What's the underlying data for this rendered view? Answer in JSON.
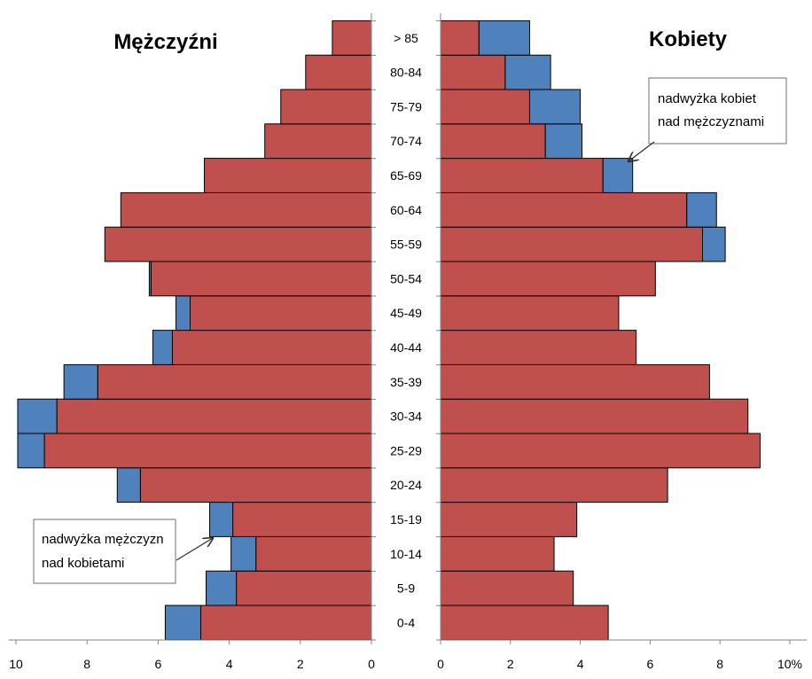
{
  "chart_data": {
    "type": "bar",
    "orientation": "horizontal",
    "unit": "%",
    "age_groups": [
      "0-4",
      "5-9",
      "10-14",
      "15-19",
      "20-24",
      "25-29",
      "30-34",
      "35-39",
      "40-44",
      "45-49",
      "50-54",
      "55-59",
      "60-64",
      "65-69",
      "70-74",
      "75-79",
      "80-84",
      "> 85"
    ],
    "panels": [
      {
        "key": "men",
        "title": "Mężczyźni",
        "xlim": [
          10,
          0
        ],
        "x_ticks": [
          "10",
          "8",
          "6",
          "4",
          "2",
          "0"
        ],
        "series": [
          {
            "values": [
              4.8,
              3.8,
              3.25,
              3.9,
              6.5,
              9.2,
              8.85,
              7.7,
              5.6,
              5.1,
              6.2,
              7.5,
              7.05,
              4.7,
              3.0,
              2.55,
              1.85,
              1.1
            ]
          },
          {
            "values": [
              1.0,
              0.85,
              0.7,
              0.65,
              0.65,
              0.75,
              1.1,
              0.95,
              0.55,
              0.4,
              0.05,
              0,
              0,
              0,
              0,
              0,
              0,
              0
            ]
          }
        ]
      },
      {
        "key": "women",
        "title": "Kobiety",
        "xlim": [
          0,
          10
        ],
        "x_ticks": [
          "0",
          "2",
          "4",
          "6",
          "8",
          "10%"
        ],
        "series": [
          {
            "values": [
              4.8,
              3.8,
              3.25,
              3.9,
              6.5,
              9.15,
              8.8,
              7.7,
              5.6,
              5.1,
              6.15,
              7.5,
              7.05,
              4.65,
              3.0,
              2.55,
              1.85,
              1.1
            ]
          },
          {
            "values": [
              0,
              0,
              0,
              0,
              0,
              0,
              0,
              0,
              0,
              0,
              0,
              0.65,
              0.85,
              0.85,
              1.05,
              1.45,
              1.3,
              1.45
            ]
          }
        ]
      }
    ],
    "colors": {
      "base": "#c0504d",
      "surplus": "#4f81bd",
      "edge": "#000000"
    },
    "annotations": [
      {
        "key": "women_surplus",
        "lines": [
          "nadwyżka kobiet",
          "nad mężczyznami"
        ]
      },
      {
        "key": "men_surplus",
        "lines": [
          "nadwyżka mężczyzn",
          "nad kobietami"
        ]
      }
    ],
    "grid": false,
    "legend": "none"
  }
}
